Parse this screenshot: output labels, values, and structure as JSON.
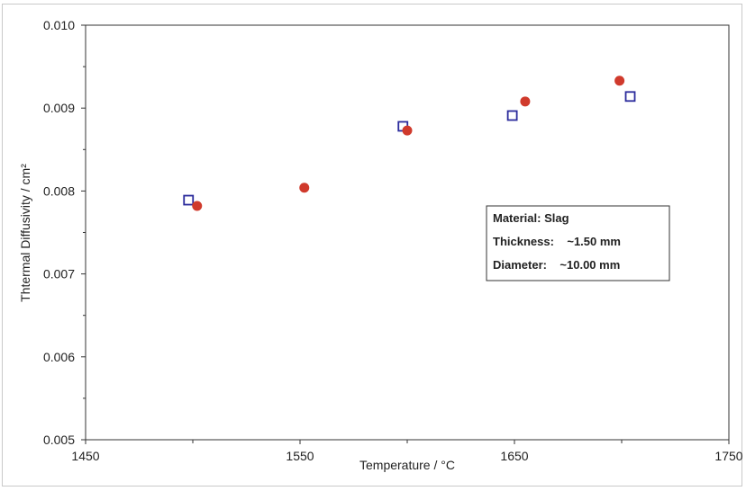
{
  "chart_data": {
    "type": "scatter",
    "xlabel": "Temperature / °C",
    "ylabel": "Thtermal Diffusivity / cm²",
    "xlim": [
      1450,
      1750
    ],
    "ylim": [
      0.005,
      0.01
    ],
    "x_ticks": [
      1450,
      1550,
      1650,
      1750
    ],
    "x_tick_labels": [
      "1450",
      "1550",
      "1650",
      "1750"
    ],
    "y_ticks": [
      0.005,
      0.006,
      0.007,
      0.008,
      0.009,
      0.01
    ],
    "y_tick_labels": [
      "0.005",
      "0.006",
      "0.007",
      "0.008",
      "0.009",
      "0.010"
    ],
    "grid": false,
    "series": [
      {
        "marker": "square-open",
        "color": "#2b2b9c",
        "points": [
          {
            "x": 1498,
            "y": 0.00789
          },
          {
            "x": 1598,
            "y": 0.00878
          },
          {
            "x": 1649,
            "y": 0.00891
          },
          {
            "x": 1704,
            "y": 0.00914
          }
        ]
      },
      {
        "marker": "circle-filled",
        "color": "#d03a2c",
        "points": [
          {
            "x": 1502,
            "y": 0.00782
          },
          {
            "x": 1552,
            "y": 0.00804
          },
          {
            "x": 1600,
            "y": 0.00873
          },
          {
            "x": 1655,
            "y": 0.00908
          },
          {
            "x": 1699,
            "y": 0.00933
          }
        ]
      }
    ],
    "annotation": {
      "lines": [
        "Material: Slag",
        "Thickness:    ~1.50 mm",
        "Diameter:    ~10.00 mm"
      ]
    }
  }
}
